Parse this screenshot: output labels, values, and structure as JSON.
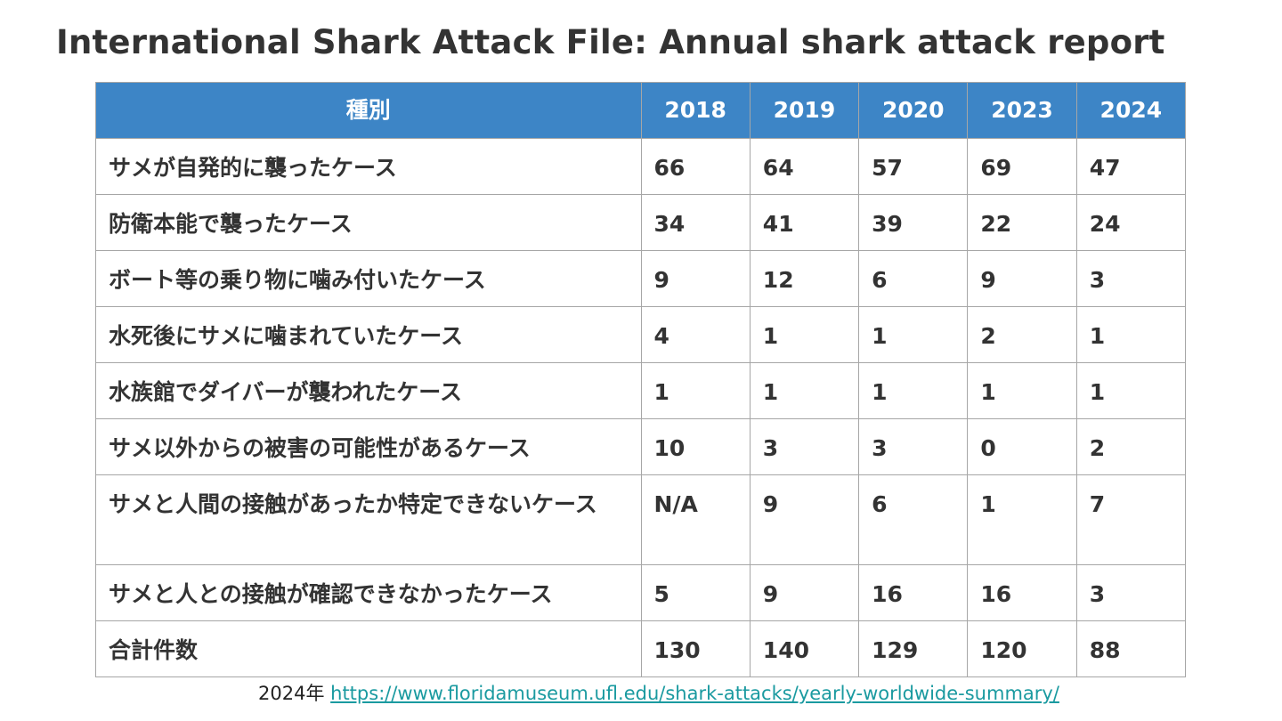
{
  "title": "International Shark Attack File: Annual shark attack report",
  "table": {
    "headers": [
      "種別",
      "2018",
      "2019",
      "2020",
      "2023",
      "2024"
    ],
    "rows": [
      [
        "サメが自発的に襲ったケース",
        "66",
        "64",
        "57",
        "69",
        "47"
      ],
      [
        "防衛本能で襲ったケース",
        "34",
        "41",
        "39",
        "22",
        "24"
      ],
      [
        "ボート等の乗り物に噛み付いたケース",
        "9",
        "12",
        "6",
        "9",
        "3"
      ],
      [
        "水死後にサメに噛まれていたケース",
        "4",
        "1",
        "1",
        "2",
        "1"
      ],
      [
        "水族館でダイバーが襲われたケース",
        "1",
        "1",
        "1",
        "1",
        "1"
      ],
      [
        "サメ以外からの被害の可能性があるケース",
        "10",
        "3",
        "3",
        "0",
        "2"
      ],
      [
        "サメと人間の接触があったか特定できないケース",
        "N/A",
        "9",
        "6",
        "1",
        "7"
      ],
      [
        "サメと人との接触が確認できなかったケース",
        "5",
        "9",
        "16",
        "16",
        "3"
      ],
      [
        "合計件数",
        "130",
        "140",
        "129",
        "120",
        "88"
      ]
    ],
    "header_color": "#3d85c6"
  },
  "source": {
    "prefix": "2024年",
    "link_text": "https://www.floridamuseum.ufl.edu/shark-attacks/yearly-worldwide-summary/",
    "link_color": "#1a9aa0"
  }
}
